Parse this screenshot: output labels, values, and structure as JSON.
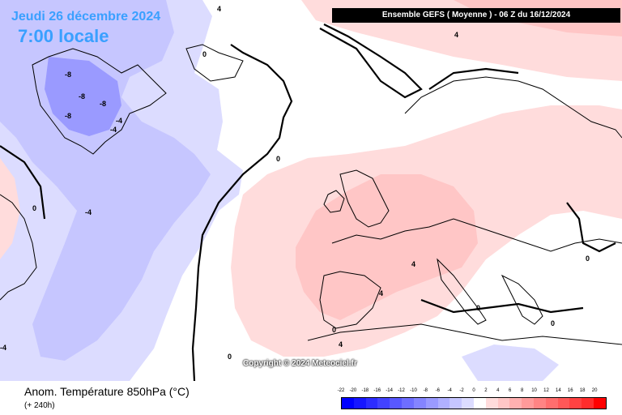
{
  "header": {
    "date": "Jeudi 26 décembre 2024",
    "time": "7:00 locale",
    "model_run": "Ensemble GEFS ( Moyenne ) - 06 Z du 16/12/2024"
  },
  "copyright": "Copyright © 2024 Meteociel.fr",
  "footer": {
    "title": "Anom. Température 850hPa (°C)",
    "subtitle": "(+ 240h)"
  },
  "map": {
    "contour_labels": [
      {
        "name": "contour-label-greenland-1",
        "text": "-8"
      },
      {
        "name": "contour-label-greenland-2",
        "text": "-8"
      },
      {
        "name": "contour-label-greenland-3",
        "text": "-8"
      },
      {
        "name": "contour-label-greenland-4",
        "text": "-8"
      },
      {
        "name": "contour-label-greenland-5",
        "text": "-4"
      },
      {
        "name": "contour-label-greenland-6",
        "text": "-4"
      },
      {
        "name": "contour-label-atlantic-1",
        "text": "-4"
      },
      {
        "name": "contour-label-atlantic-2",
        "text": "0"
      },
      {
        "name": "contour-label-atlantic-3",
        "text": "0"
      },
      {
        "name": "contour-label-north-1",
        "text": "4"
      },
      {
        "name": "contour-label-north-2",
        "text": "4"
      },
      {
        "name": "contour-label-north-3",
        "text": "0"
      },
      {
        "name": "contour-label-europe-1",
        "text": "4"
      },
      {
        "name": "contour-label-europe-2",
        "text": "4"
      },
      {
        "name": "contour-label-mediterranean-1",
        "text": "0"
      },
      {
        "name": "contour-label-mediterranean-2",
        "text": "0"
      },
      {
        "name": "contour-label-southwest-1",
        "text": "0"
      },
      {
        "name": "contour-label-east-1",
        "text": "0"
      },
      {
        "name": "contour-label-africa-1",
        "text": "4"
      },
      {
        "name": "contour-label-west-1",
        "text": "-4"
      },
      {
        "name": "contour-label-west-2",
        "text": "0"
      }
    ]
  },
  "legend": {
    "labels": [
      "-22",
      "-20",
      "-18",
      "-16",
      "-14",
      "-12",
      "-10",
      "-8",
      "-6",
      "-4",
      "-2",
      "0",
      "2",
      "4",
      "6",
      "8",
      "10",
      "12",
      "14",
      "16",
      "18",
      "20"
    ],
    "colors": [
      "#0000ff",
      "#1616ff",
      "#2c2cff",
      "#4242ff",
      "#5858ff",
      "#6e6eff",
      "#8484ff",
      "#9a9aff",
      "#b0b0ff",
      "#c6c6ff",
      "#dcdcff",
      "#ffffff",
      "#ffdcdc",
      "#ffc6c6",
      "#ffb0b0",
      "#ff9a9a",
      "#ff8484",
      "#ff6e6e",
      "#ff5858",
      "#ff4242",
      "#ff2c2c",
      "#ff0000"
    ]
  }
}
